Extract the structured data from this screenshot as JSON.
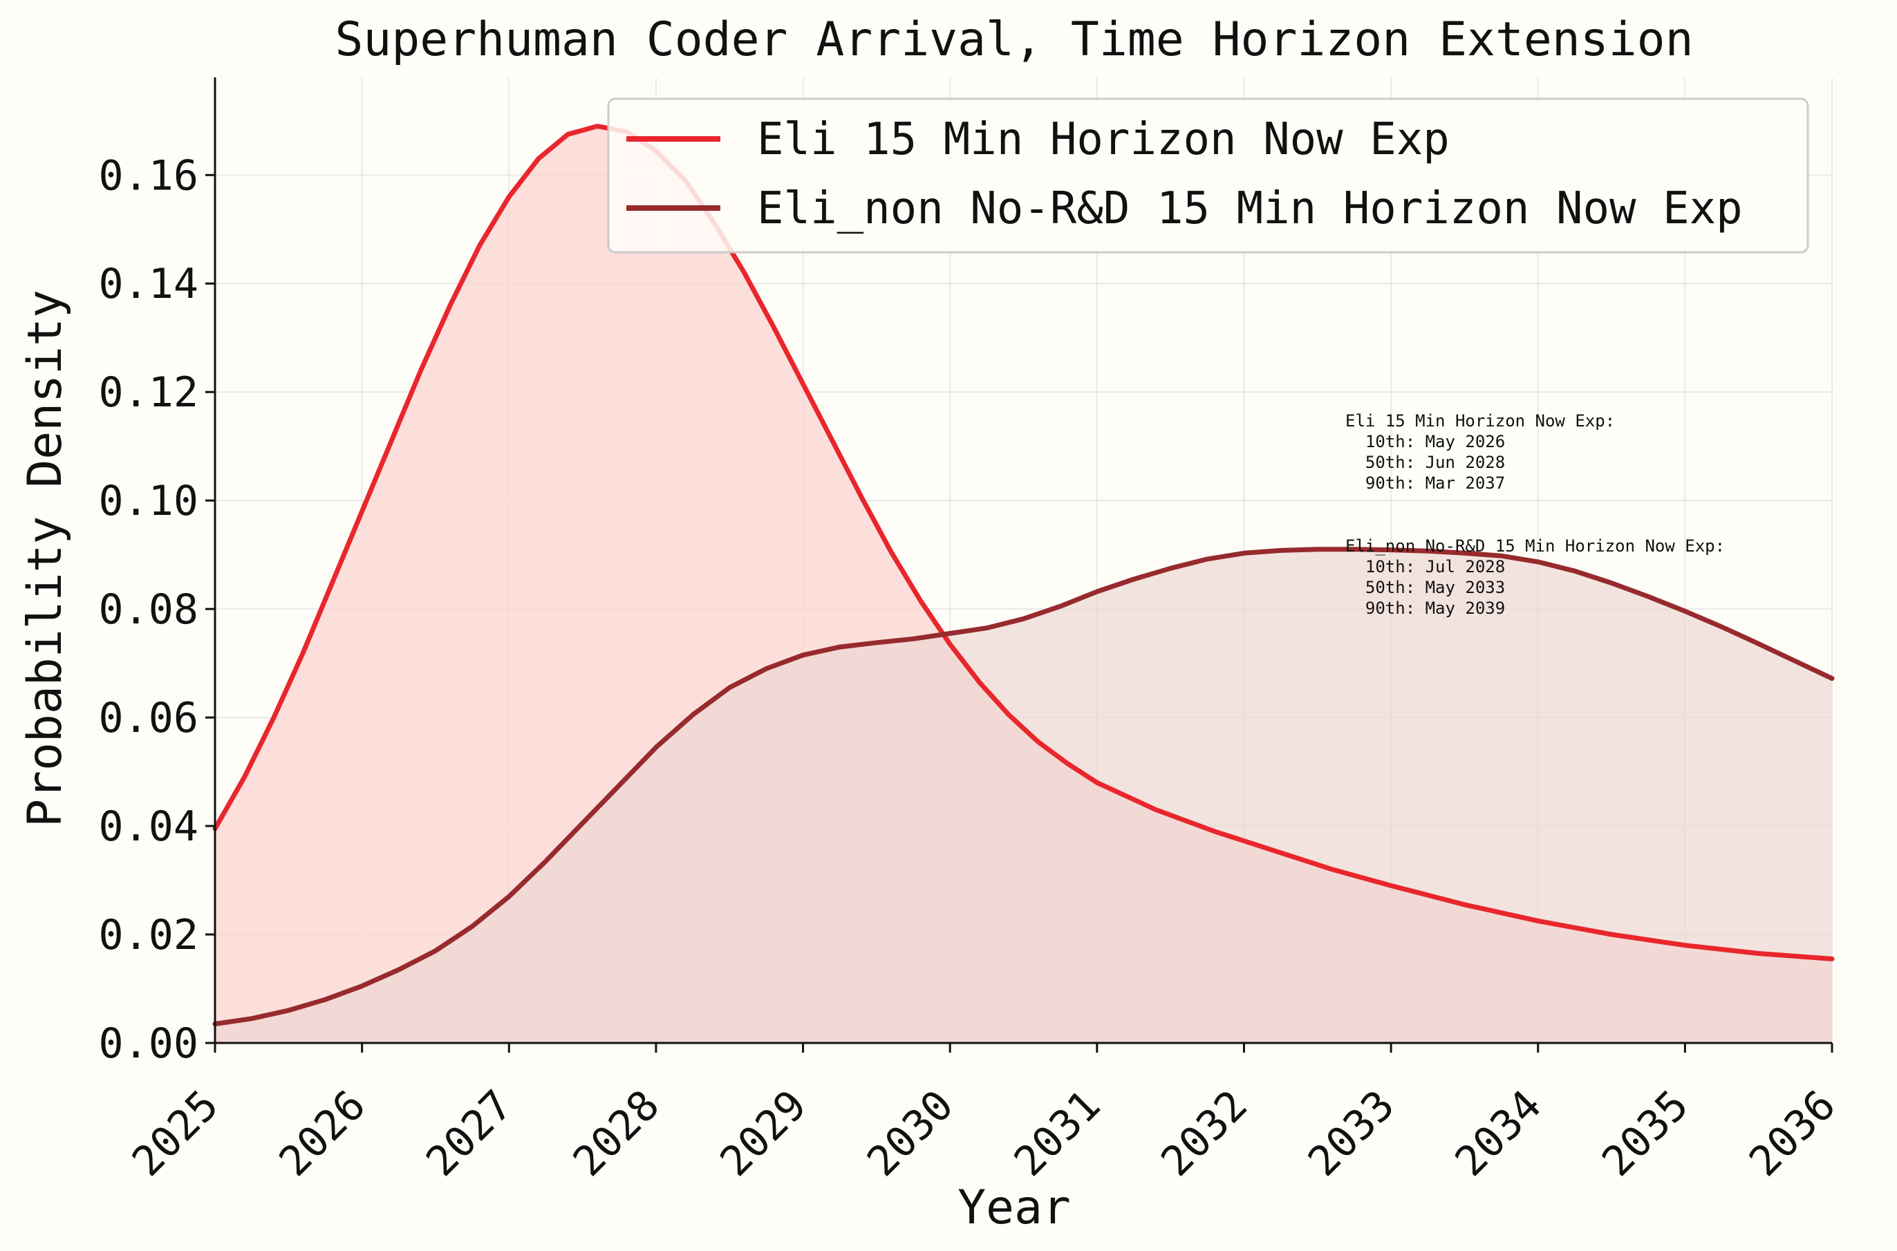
{
  "chart_data": {
    "type": "area",
    "title": "Superhuman Coder Arrival, Time Horizon Extension",
    "xlabel": "Year",
    "ylabel": "Probability Density",
    "xlim": [
      2025,
      2036
    ],
    "ylim": [
      0,
      0.178
    ],
    "x_ticks": [
      "2025",
      "2026",
      "2027",
      "2028",
      "2029",
      "2030",
      "2031",
      "2032",
      "2033",
      "2034",
      "2035",
      "2036"
    ],
    "y_ticks": [
      "0.00",
      "0.02",
      "0.04",
      "0.06",
      "0.08",
      "0.10",
      "0.12",
      "0.14",
      "0.16"
    ],
    "grid": true,
    "legend_position": "top-right",
    "series": [
      {
        "name": "Eli 15 Min Horizon Now Exp",
        "color": "#e8262b",
        "fill": "#fbd3d1",
        "x": [
          2025.0,
          2025.2,
          2025.4,
          2025.6,
          2025.8,
          2026.0,
          2026.2,
          2026.4,
          2026.6,
          2026.8,
          2027.0,
          2027.2,
          2027.4,
          2027.6,
          2027.8,
          2028.0,
          2028.2,
          2028.4,
          2028.6,
          2028.8,
          2029.0,
          2029.2,
          2029.4,
          2029.6,
          2029.8,
          2030.0,
          2030.2,
          2030.4,
          2030.6,
          2030.8,
          2031.0,
          2031.4,
          2031.8,
          2032.2,
          2032.6,
          2033.0,
          2033.5,
          2034.0,
          2034.5,
          2035.0,
          2035.5,
          2036.0
        ],
        "values": [
          0.0395,
          0.049,
          0.06,
          0.072,
          0.085,
          0.098,
          0.111,
          0.124,
          0.136,
          0.147,
          0.156,
          0.163,
          0.1675,
          0.169,
          0.168,
          0.1645,
          0.159,
          0.151,
          0.142,
          0.132,
          0.1215,
          0.111,
          0.1005,
          0.0905,
          0.0815,
          0.0735,
          0.0665,
          0.0605,
          0.0555,
          0.0515,
          0.048,
          0.043,
          0.039,
          0.0355,
          0.032,
          0.029,
          0.0255,
          0.0225,
          0.02,
          0.018,
          0.0165,
          0.0155
        ]
      },
      {
        "name": "Eli_non No-R&D 15 Min Horizon Now Exp",
        "color": "#962a2c",
        "fill": "#eed7d3",
        "x": [
          2025.0,
          2025.25,
          2025.5,
          2025.75,
          2026.0,
          2026.25,
          2026.5,
          2026.75,
          2027.0,
          2027.25,
          2027.5,
          2027.75,
          2028.0,
          2028.25,
          2028.5,
          2028.75,
          2029.0,
          2029.25,
          2029.5,
          2029.75,
          2030.0,
          2030.25,
          2030.5,
          2030.75,
          2031.0,
          2031.25,
          2031.5,
          2031.75,
          2032.0,
          2032.25,
          2032.5,
          2032.75,
          2033.0,
          2033.25,
          2033.5,
          2033.75,
          2034.0,
          2034.25,
          2034.5,
          2034.75,
          2035.0,
          2035.25,
          2035.5,
          2035.75,
          2036.0
        ],
        "values": [
          0.0035,
          0.0045,
          0.006,
          0.008,
          0.0105,
          0.0135,
          0.017,
          0.0215,
          0.027,
          0.0335,
          0.0405,
          0.0475,
          0.0545,
          0.0605,
          0.0655,
          0.069,
          0.0715,
          0.073,
          0.0738,
          0.0745,
          0.0755,
          0.0765,
          0.0782,
          0.0805,
          0.0832,
          0.0855,
          0.0875,
          0.0892,
          0.0903,
          0.0908,
          0.091,
          0.091,
          0.0909,
          0.0907,
          0.0903,
          0.0898,
          0.0887,
          0.087,
          0.0848,
          0.0823,
          0.0796,
          0.0767,
          0.0736,
          0.0704,
          0.0672
        ]
      }
    ],
    "annotations": [
      {
        "lines": [
          "Eli 15 Min Horizon Now Exp:",
          "  10th: May 2026",
          "  50th: Jun 2028",
          "  90th: Mar 2037"
        ]
      },
      {
        "lines": [
          "Eli_non No-R&D 15 Min Horizon Now Exp:",
          "  10th: Jul 2028",
          "  50th: May 2033",
          "  90th: May 2039"
        ]
      }
    ]
  }
}
